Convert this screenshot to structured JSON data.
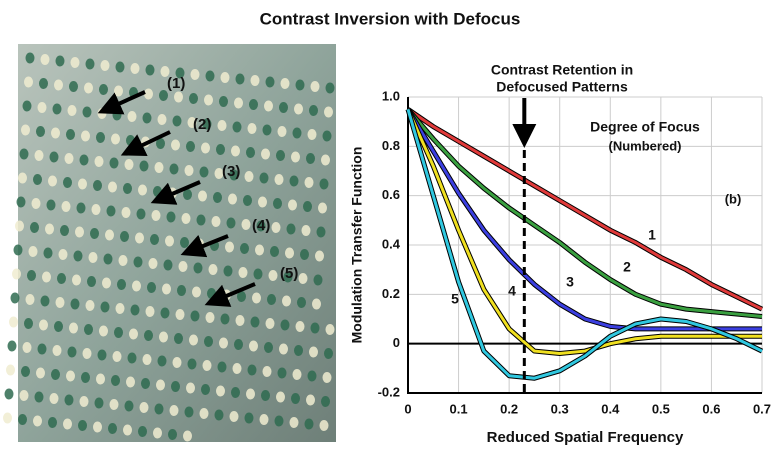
{
  "title": "Contrast Inversion with Defocus",
  "photo": {
    "labels": [
      "(1)",
      "(2)",
      "(3)",
      "(4)",
      "(5)"
    ]
  },
  "chart_data": {
    "type": "line",
    "title": [
      "Contrast Retention in",
      "Defocused Patterns"
    ],
    "x_label": "Reduced Spatial Frequency",
    "y_label": "Modulation Transfer Function",
    "annotations": [
      "Degree of Focus",
      "(Numbered)",
      "(b)"
    ],
    "x": [
      0,
      0.05,
      0.1,
      0.15,
      0.2,
      0.25,
      0.3,
      0.35,
      0.4,
      0.45,
      0.5,
      0.55,
      0.6,
      0.65,
      0.7
    ],
    "series": [
      {
        "name": "1",
        "color": "#e03a3a",
        "values": [
          0.95,
          0.88,
          0.82,
          0.76,
          0.7,
          0.64,
          0.58,
          0.52,
          0.46,
          0.41,
          0.35,
          0.3,
          0.24,
          0.19,
          0.14
        ]
      },
      {
        "name": "2",
        "color": "#3aa040",
        "values": [
          0.95,
          0.83,
          0.72,
          0.63,
          0.55,
          0.48,
          0.41,
          0.33,
          0.26,
          0.2,
          0.16,
          0.14,
          0.13,
          0.12,
          0.11
        ]
      },
      {
        "name": "3",
        "color": "#3b3fe0",
        "values": [
          0.95,
          0.78,
          0.61,
          0.46,
          0.34,
          0.24,
          0.16,
          0.1,
          0.07,
          0.06,
          0.06,
          0.06,
          0.06,
          0.06,
          0.06
        ]
      },
      {
        "name": "4",
        "color": "#f0e020",
        "values": [
          0.95,
          0.72,
          0.46,
          0.22,
          0.06,
          -0.03,
          -0.04,
          -0.03,
          0.0,
          0.02,
          0.03,
          0.03,
          0.03,
          0.03,
          0.03
        ]
      },
      {
        "name": "5",
        "color": "#30c8e0",
        "values": [
          0.95,
          0.6,
          0.25,
          -0.03,
          -0.13,
          -0.14,
          -0.11,
          -0.05,
          0.03,
          0.08,
          0.1,
          0.09,
          0.06,
          0.02,
          -0.03
        ]
      }
    ],
    "reference_line_x": 0.23,
    "xlim": [
      0,
      0.7
    ],
    "ylim": [
      -0.2,
      1.0
    ],
    "xticks": [
      0,
      0.1,
      0.2,
      0.3,
      0.4,
      0.5,
      0.6,
      0.7
    ],
    "yticks": [
      -0.2,
      0,
      0.2,
      0.4,
      0.6,
      0.8,
      {
        "value": 1.0,
        "label": "1.0"
      }
    ],
    "grid": true
  }
}
